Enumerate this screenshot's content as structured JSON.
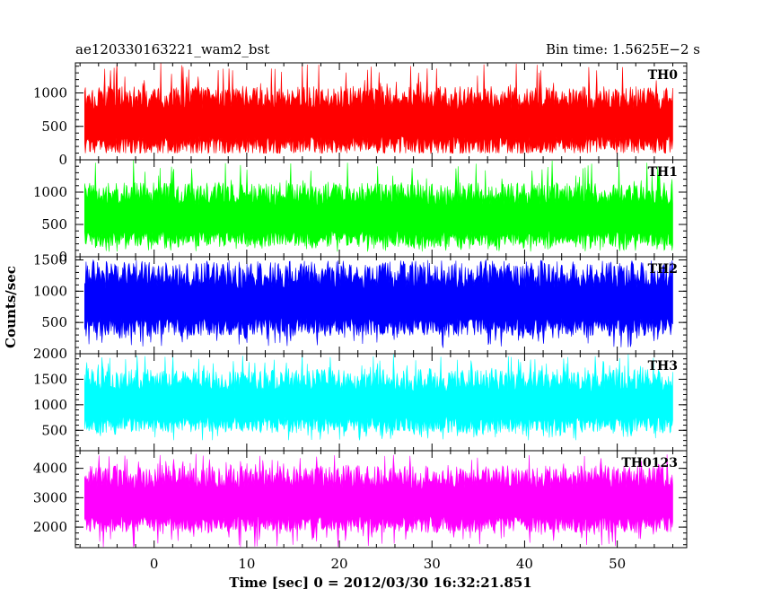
{
  "header": {
    "left": "ae120330163221_wam2_bst",
    "right": "Bin time: 1.5625E−2 s"
  },
  "axes": {
    "xlabel": "Time [sec] 0 = 2012/03/30 16:32:21.851",
    "ylabel": "Counts/sec"
  },
  "chart_data": {
    "type": "line",
    "x_range": [
      -8.5,
      57.5
    ],
    "x_ticks": [
      0,
      10,
      20,
      30,
      40,
      50
    ],
    "x_tick_labels": [
      "0",
      "10",
      "20",
      "30",
      "40",
      "50"
    ],
    "data_x_range": [
      -7.5,
      56.0
    ],
    "bin_time": 0.015625,
    "style": "filled noise band (light curve)",
    "panels": [
      {
        "name": "TH0",
        "color": "#ff0000",
        "ylim": [
          0,
          1450
        ],
        "yticks": [
          0,
          500,
          1000
        ],
        "ytick_labels": [
          "0",
          "500",
          "1000"
        ],
        "baseline": 100,
        "low": 100,
        "high": 1100,
        "peak_max": 1450
      },
      {
        "name": "TH1",
        "color": "#00ff00",
        "ylim": [
          0,
          1500
        ],
        "yticks": [
          0,
          500,
          1000
        ],
        "ytick_labels": [
          "0",
          "500",
          "1000"
        ],
        "baseline": 80,
        "low": 150,
        "high": 1150,
        "peak_max": 1500
      },
      {
        "name": "TH2",
        "color": "#0000ff",
        "ylim": [
          0,
          1550
        ],
        "yticks": [
          500,
          1000,
          1500
        ],
        "ytick_labels": [
          "500",
          "1000",
          "1500"
        ],
        "baseline": 90,
        "low": 280,
        "high": 1450,
        "peak_max": 1500
      },
      {
        "name": "TH3",
        "color": "#00ffff",
        "ylim": [
          100,
          2000
        ],
        "yticks": [
          500,
          1000,
          1500,
          2000
        ],
        "ytick_labels": [
          "500",
          "1000",
          "1500",
          "2000"
        ],
        "baseline": 300,
        "low": 450,
        "high": 1700,
        "peak_max": 2000
      },
      {
        "name": "TH0123",
        "color": "#ff00ff",
        "ylim": [
          1300,
          4600
        ],
        "yticks": [
          2000,
          3000,
          4000
        ],
        "ytick_labels": [
          "2000",
          "3000",
          "4000"
        ],
        "baseline": 1300,
        "low": 1800,
        "high": 4100,
        "peak_max": 4500
      }
    ]
  }
}
